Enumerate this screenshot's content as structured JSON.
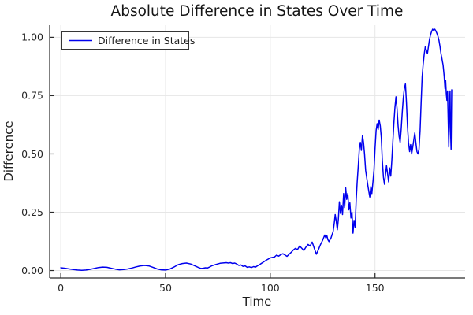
{
  "chart_data": {
    "type": "line",
    "title": "Absolute Difference in States Over Time",
    "xlabel": "Time",
    "ylabel": "Difference",
    "xlim": [
      -5.3,
      193
    ],
    "ylim": [
      -0.032,
      1.052
    ],
    "grid": true,
    "background": "#ffffff",
    "grid_color": "#e6e6e6",
    "axis_color": "#2b2b2b",
    "x_ticks": {
      "values": [
        0,
        50,
        100,
        150
      ],
      "labels": [
        "0",
        "50",
        "100",
        "150"
      ]
    },
    "y_ticks": {
      "values": [
        0,
        0.25,
        0.5,
        0.75,
        1.0
      ],
      "labels": [
        "0.00",
        "0.25",
        "0.50",
        "0.75",
        "1.00"
      ]
    },
    "legend": {
      "position": "top-left",
      "entries": [
        {
          "label": "Difference in States",
          "color": "#0000ee"
        }
      ]
    },
    "series": [
      {
        "name": "Difference in States",
        "color": "#0000ee",
        "points": [
          [
            0,
            0.012
          ],
          [
            2,
            0.01
          ],
          [
            4,
            0.007
          ],
          [
            6,
            0.004
          ],
          [
            8,
            0.002
          ],
          [
            10,
            0.001
          ],
          [
            12,
            0.002
          ],
          [
            14,
            0.005
          ],
          [
            16,
            0.009
          ],
          [
            18,
            0.013
          ],
          [
            20,
            0.015
          ],
          [
            22,
            0.014
          ],
          [
            24,
            0.01
          ],
          [
            26,
            0.006
          ],
          [
            28,
            0.003
          ],
          [
            30,
            0.004
          ],
          [
            32,
            0.007
          ],
          [
            34,
            0.011
          ],
          [
            36,
            0.016
          ],
          [
            38,
            0.02
          ],
          [
            40,
            0.022
          ],
          [
            42,
            0.02
          ],
          [
            44,
            0.014
          ],
          [
            46,
            0.007
          ],
          [
            48,
            0.003
          ],
          [
            50,
            0.002
          ],
          [
            52,
            0.006
          ],
          [
            54,
            0.015
          ],
          [
            56,
            0.025
          ],
          [
            58,
            0.03
          ],
          [
            60,
            0.032
          ],
          [
            62,
            0.028
          ],
          [
            64,
            0.02
          ],
          [
            66,
            0.012
          ],
          [
            67,
            0.009
          ],
          [
            68,
            0.01
          ],
          [
            69,
            0.012
          ],
          [
            70,
            0.011
          ],
          [
            71,
            0.015
          ],
          [
            72,
            0.02
          ],
          [
            74,
            0.026
          ],
          [
            76,
            0.031
          ],
          [
            78,
            0.033
          ],
          [
            79,
            0.034
          ],
          [
            80,
            0.032
          ],
          [
            81,
            0.034
          ],
          [
            82,
            0.03
          ],
          [
            83,
            0.032
          ],
          [
            84,
            0.028
          ],
          [
            85,
            0.022
          ],
          [
            86,
            0.024
          ],
          [
            87,
            0.018
          ],
          [
            88,
            0.02
          ],
          [
            89,
            0.014
          ],
          [
            90,
            0.016
          ],
          [
            91,
            0.013
          ],
          [
            92,
            0.017
          ],
          [
            93,
            0.015
          ],
          [
            94,
            0.021
          ],
          [
            95,
            0.026
          ],
          [
            96,
            0.032
          ],
          [
            97,
            0.038
          ],
          [
            98,
            0.044
          ],
          [
            99,
            0.049
          ],
          [
            100,
            0.054
          ],
          [
            101,
            0.056
          ],
          [
            102,
            0.058
          ],
          [
            103,
            0.066
          ],
          [
            104,
            0.062
          ],
          [
            105,
            0.068
          ],
          [
            106,
            0.072
          ],
          [
            107,
            0.067
          ],
          [
            108,
            0.061
          ],
          [
            109,
            0.07
          ],
          [
            110,
            0.078
          ],
          [
            111,
            0.088
          ],
          [
            112,
            0.095
          ],
          [
            113,
            0.09
          ],
          [
            114,
            0.105
          ],
          [
            115,
            0.096
          ],
          [
            116,
            0.086
          ],
          [
            117,
            0.1
          ],
          [
            118,
            0.112
          ],
          [
            119,
            0.105
          ],
          [
            120,
            0.122
          ],
          [
            121,
            0.095
          ],
          [
            122,
            0.07
          ],
          [
            123,
            0.09
          ],
          [
            124,
            0.112
          ],
          [
            125,
            0.13
          ],
          [
            126,
            0.152
          ],
          [
            126.5,
            0.14
          ],
          [
            127,
            0.15
          ],
          [
            127.5,
            0.132
          ],
          [
            128,
            0.124
          ],
          [
            129,
            0.14
          ],
          [
            130,
            0.168
          ],
          [
            130.5,
            0.2
          ],
          [
            131,
            0.24
          ],
          [
            131.5,
            0.21
          ],
          [
            132,
            0.175
          ],
          [
            132.5,
            0.22
          ],
          [
            133,
            0.295
          ],
          [
            133.5,
            0.245
          ],
          [
            134,
            0.28
          ],
          [
            134.5,
            0.24
          ],
          [
            135,
            0.33
          ],
          [
            135.5,
            0.27
          ],
          [
            136,
            0.355
          ],
          [
            136.5,
            0.305
          ],
          [
            137,
            0.33
          ],
          [
            137.5,
            0.26
          ],
          [
            138,
            0.29
          ],
          [
            138.5,
            0.225
          ],
          [
            139,
            0.25
          ],
          [
            139.5,
            0.16
          ],
          [
            140,
            0.215
          ],
          [
            140.5,
            0.185
          ],
          [
            141,
            0.3
          ],
          [
            141.5,
            0.38
          ],
          [
            142,
            0.45
          ],
          [
            142.5,
            0.52
          ],
          [
            143,
            0.55
          ],
          [
            143.5,
            0.515
          ],
          [
            144,
            0.58
          ],
          [
            144.5,
            0.55
          ],
          [
            145,
            0.5
          ],
          [
            145.5,
            0.43
          ],
          [
            146,
            0.4
          ],
          [
            146.5,
            0.37
          ],
          [
            147,
            0.34
          ],
          [
            147.5,
            0.315
          ],
          [
            148,
            0.36
          ],
          [
            148.5,
            0.33
          ],
          [
            149,
            0.38
          ],
          [
            149.5,
            0.43
          ],
          [
            150,
            0.52
          ],
          [
            150.5,
            0.6
          ],
          [
            151,
            0.63
          ],
          [
            151.5,
            0.605
          ],
          [
            152,
            0.645
          ],
          [
            152.5,
            0.62
          ],
          [
            153,
            0.57
          ],
          [
            153.5,
            0.47
          ],
          [
            154,
            0.4
          ],
          [
            154.5,
            0.37
          ],
          [
            155,
            0.41
          ],
          [
            155.5,
            0.45
          ],
          [
            156,
            0.415
          ],
          [
            156.5,
            0.38
          ],
          [
            157,
            0.44
          ],
          [
            157.5,
            0.405
          ],
          [
            158,
            0.47
          ],
          [
            158.5,
            0.55
          ],
          [
            159,
            0.63
          ],
          [
            159.5,
            0.7
          ],
          [
            160,
            0.745
          ],
          [
            160.5,
            0.695
          ],
          [
            161,
            0.62
          ],
          [
            161.5,
            0.575
          ],
          [
            162,
            0.55
          ],
          [
            162.5,
            0.605
          ],
          [
            163,
            0.68
          ],
          [
            163.5,
            0.74
          ],
          [
            164,
            0.78
          ],
          [
            164.5,
            0.8
          ],
          [
            165,
            0.72
          ],
          [
            165.5,
            0.62
          ],
          [
            166,
            0.55
          ],
          [
            166.5,
            0.51
          ],
          [
            167,
            0.54
          ],
          [
            167.5,
            0.5
          ],
          [
            168,
            0.53
          ],
          [
            168.5,
            0.56
          ],
          [
            169,
            0.59
          ],
          [
            169.5,
            0.55
          ],
          [
            170,
            0.51
          ],
          [
            170.5,
            0.5
          ],
          [
            171,
            0.52
          ],
          [
            171.5,
            0.6
          ],
          [
            172,
            0.72
          ],
          [
            172.5,
            0.83
          ],
          [
            173,
            0.885
          ],
          [
            173.5,
            0.93
          ],
          [
            174,
            0.96
          ],
          [
            174.5,
            0.945
          ],
          [
            175,
            0.93
          ],
          [
            175.5,
            0.96
          ],
          [
            176,
            0.99
          ],
          [
            176.5,
            1.01
          ],
          [
            177,
            1.025
          ],
          [
            177.5,
            1.035
          ],
          [
            178,
            1.03
          ],
          [
            178.5,
            1.035
          ],
          [
            179,
            1.028
          ],
          [
            179.5,
            1.018
          ],
          [
            180,
            1.005
          ],
          [
            180.5,
            0.988
          ],
          [
            181,
            0.962
          ],
          [
            181.5,
            0.93
          ],
          [
            182,
            0.905
          ],
          [
            182.5,
            0.88
          ],
          [
            183,
            0.835
          ],
          [
            183.4,
            0.78
          ],
          [
            183.7,
            0.815
          ],
          [
            184,
            0.76
          ],
          [
            184.3,
            0.73
          ],
          [
            184.6,
            0.77
          ],
          [
            185,
            0.62
          ],
          [
            185.2,
            0.53
          ],
          [
            185.5,
            0.7
          ],
          [
            185.8,
            0.77
          ],
          [
            186,
            0.61
          ],
          [
            186.3,
            0.52
          ],
          [
            186.6,
            0.775
          ]
        ]
      }
    ]
  }
}
